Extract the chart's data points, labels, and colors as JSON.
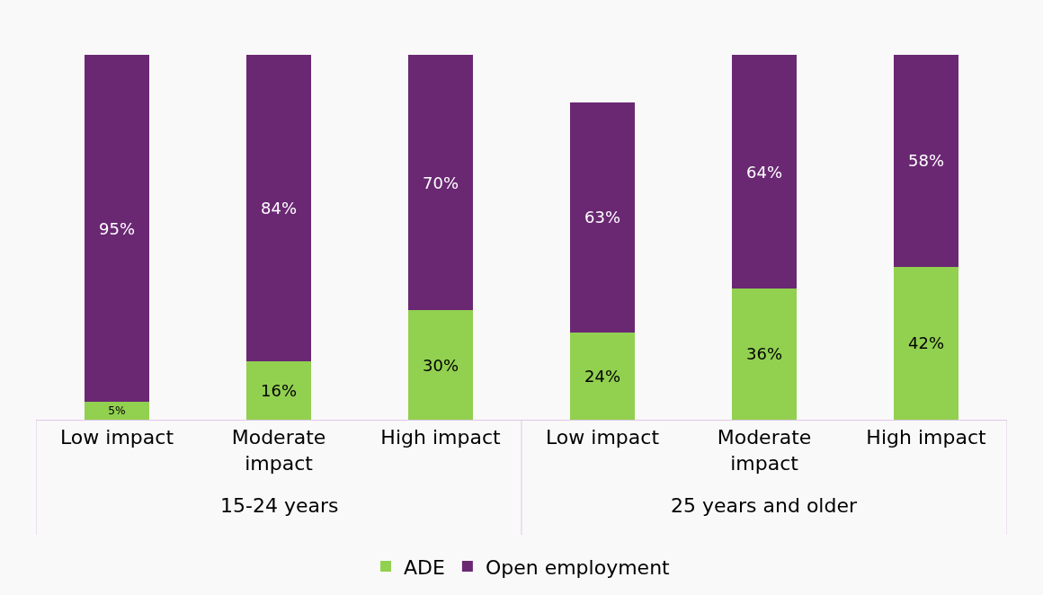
{
  "chart_data": {
    "type": "bar",
    "stacked": true,
    "categories": [
      "Low impact",
      "Moderate impact",
      "High impact",
      "Low impact",
      "Moderate impact",
      "High impact"
    ],
    "series": [
      {
        "name": "ADE",
        "color": "#92d050",
        "values": [
          5,
          16,
          30,
          24,
          36,
          42
        ],
        "value_labels": [
          "5%",
          "16%",
          "30%",
          "24%",
          "36%",
          "42%"
        ]
      },
      {
        "name": "Open employment",
        "color": "#6a2873",
        "values": [
          95,
          84,
          70,
          63,
          64,
          58
        ],
        "value_labels": [
          "95%",
          "84%",
          "70%",
          "63%",
          "64%",
          "58%"
        ]
      }
    ],
    "tick_labels": "x",
    "legend": "bottom",
    "grid": false,
    "annotations": [
      "15-24 years",
      "25 years and older"
    ]
  }
}
